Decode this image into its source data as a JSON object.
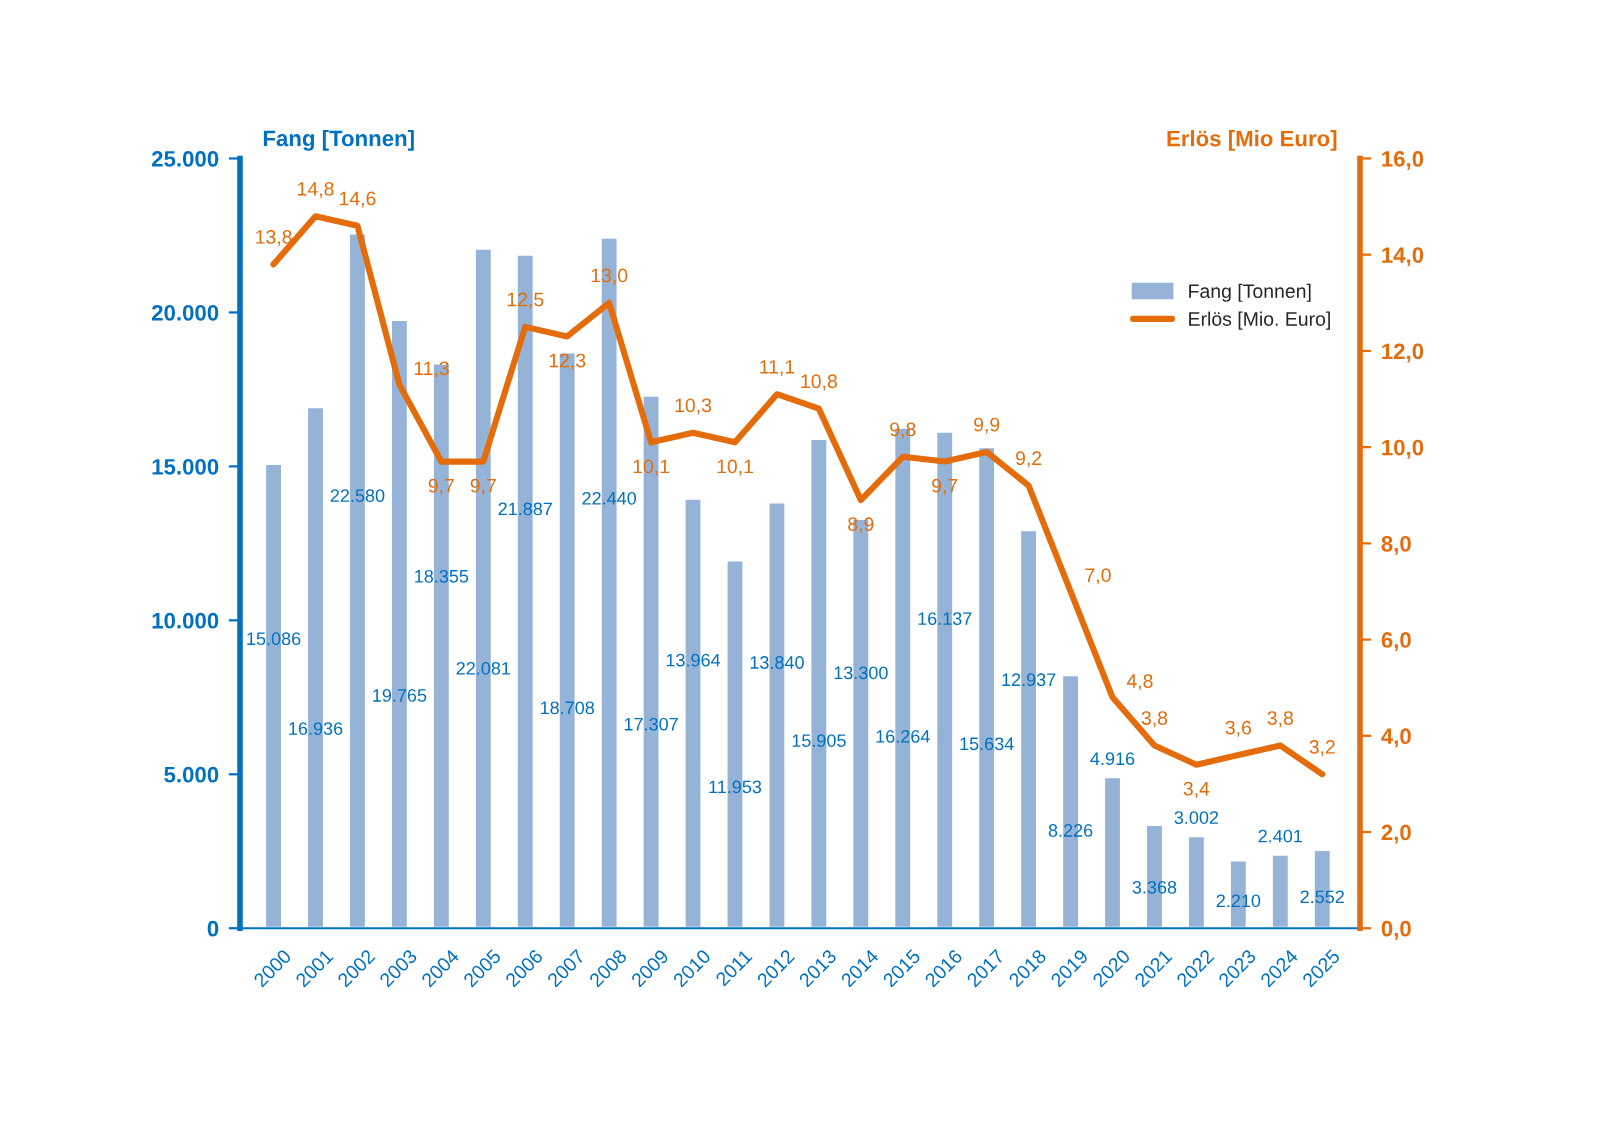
{
  "chart_data": {
    "type": "bar",
    "ylabel": "Fang [Tonnen]",
    "y2label": "Erlös [Mio Euro]",
    "categories": [
      "2000",
      "2001",
      "2002",
      "2003",
      "2004",
      "2005",
      "2006",
      "2007",
      "2008",
      "2009",
      "2010",
      "2011",
      "2012",
      "2013",
      "2014",
      "2015",
      "2016",
      "2017",
      "2018",
      "2019",
      "2020",
      "2021",
      "2022",
      "2023",
      "2024",
      "2025"
    ],
    "series": [
      {
        "name": "Fang [Tonnen]",
        "color": "#95b3d7",
        "values": [
          15086,
          16936,
          22580,
          19765,
          18355,
          22081,
          21887,
          18708,
          22440,
          17307,
          13964,
          11953,
          13840,
          15905,
          13300,
          16264,
          16137,
          15634,
          12937,
          8226,
          4916,
          3368,
          3002,
          2210,
          2401,
          2552
        ],
        "value_labels": [
          "15.086",
          "16.936",
          "22.580",
          "19.765",
          "18.355",
          "22.081",
          "21.887",
          "18.708",
          "22.440",
          "17.307",
          "13.964",
          "11.953",
          "13.840",
          "15.905",
          "13.300",
          "16.264",
          "16.137",
          "15.634",
          "12.937",
          "8.226",
          "4.916",
          "3.368",
          "3.002",
          "2.210",
          "2.401",
          "2.552"
        ]
      },
      {
        "name": "Erlös [Mio. Euro]",
        "type": "line",
        "axis": "y2",
        "color": "#e46c0a",
        "marker": "none",
        "line_style": "solid",
        "values": [
          13.8,
          14.8,
          14.6,
          11.3,
          9.7,
          9.7,
          12.5,
          12.3,
          13.0,
          10.1,
          10.3,
          10.1,
          11.1,
          10.8,
          8.9,
          9.8,
          9.7,
          9.9,
          9.2,
          7.0,
          4.8,
          3.8,
          3.4,
          3.6,
          3.8,
          3.2
        ],
        "value_labels": [
          "13,8",
          "14,8",
          "14,6",
          "11,3",
          "9,7",
          "9,7",
          "12,5",
          "12,3",
          "13,0",
          "10,1",
          "10,3",
          "10,1",
          "11,1",
          "10,8",
          "8,9",
          "9,8",
          "9,7",
          "9,9",
          "9,2",
          "7,0",
          "4,8",
          "3,8",
          "3,4",
          "3,6",
          "3,8",
          "3,2"
        ]
      }
    ],
    "ylim": [
      0,
      25000
    ],
    "yticks": [
      {
        "value": 0,
        "label": "0"
      },
      {
        "value": 5000,
        "label": "5.000"
      },
      {
        "value": 10000,
        "label": "10.000"
      },
      {
        "value": 15000,
        "label": "15.000"
      },
      {
        "value": 20000,
        "label": "20.000"
      },
      {
        "value": 25000,
        "label": "25.000"
      }
    ],
    "y2lim": [
      0,
      16
    ],
    "y2ticks": [
      {
        "value": 0,
        "label": "0,0"
      },
      {
        "value": 2,
        "label": "2,0"
      },
      {
        "value": 4,
        "label": "4,0"
      },
      {
        "value": 6,
        "label": "6,0"
      },
      {
        "value": 8,
        "label": "8,0"
      },
      {
        "value": 10,
        "label": "10,0"
      },
      {
        "value": 12,
        "label": "12,0"
      },
      {
        "value": 14,
        "label": "14,0"
      },
      {
        "value": 16,
        "label": "16,0"
      }
    ],
    "grid": false,
    "legend": "top right"
  }
}
